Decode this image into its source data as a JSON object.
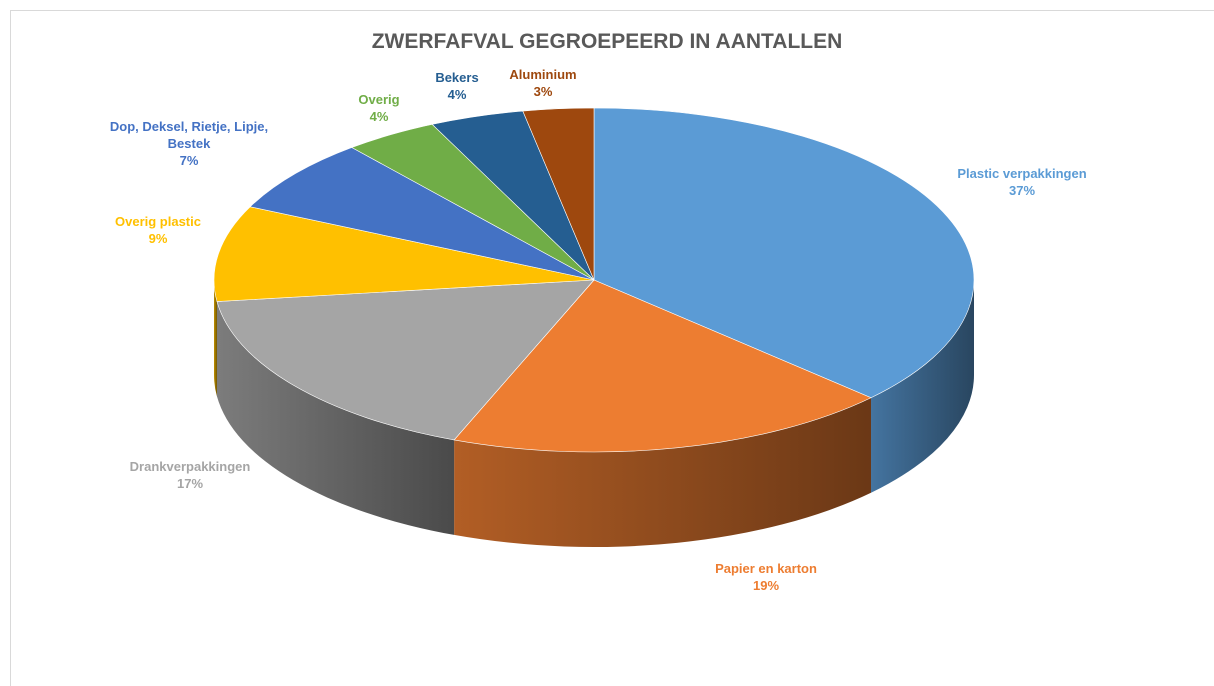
{
  "chart_data": {
    "type": "pie3d",
    "title": "ZWERFAFVAL GEGROEPEERD  IN AANTALLEN",
    "categories": [
      "Plastic  verpakkingen",
      "Papier en karton",
      "Drankverpakkingen",
      "Overig plastic",
      "Dop, Deksel, Rietje, Lipje, Bestek",
      "Overig",
      "Bekers",
      "Aluminium"
    ],
    "values": [
      37,
      19,
      17,
      9,
      7,
      4,
      4,
      3
    ],
    "value_labels": [
      "37%",
      "19%",
      "17%",
      "9%",
      "7%",
      "4%",
      "4%",
      "3%"
    ],
    "colors": [
      "#5b9bd5",
      "#ed7d31",
      "#a5a5a5",
      "#ffc000",
      "#4472c4",
      "#70ad47",
      "#255e91",
      "#9e480e"
    ],
    "label_colors": [
      "#5b9bd5",
      "#ed7d31",
      "#a5a5a5",
      "#ffc000",
      "#4472c4",
      "#70ad47",
      "#255e91",
      "#9e480e"
    ]
  }
}
